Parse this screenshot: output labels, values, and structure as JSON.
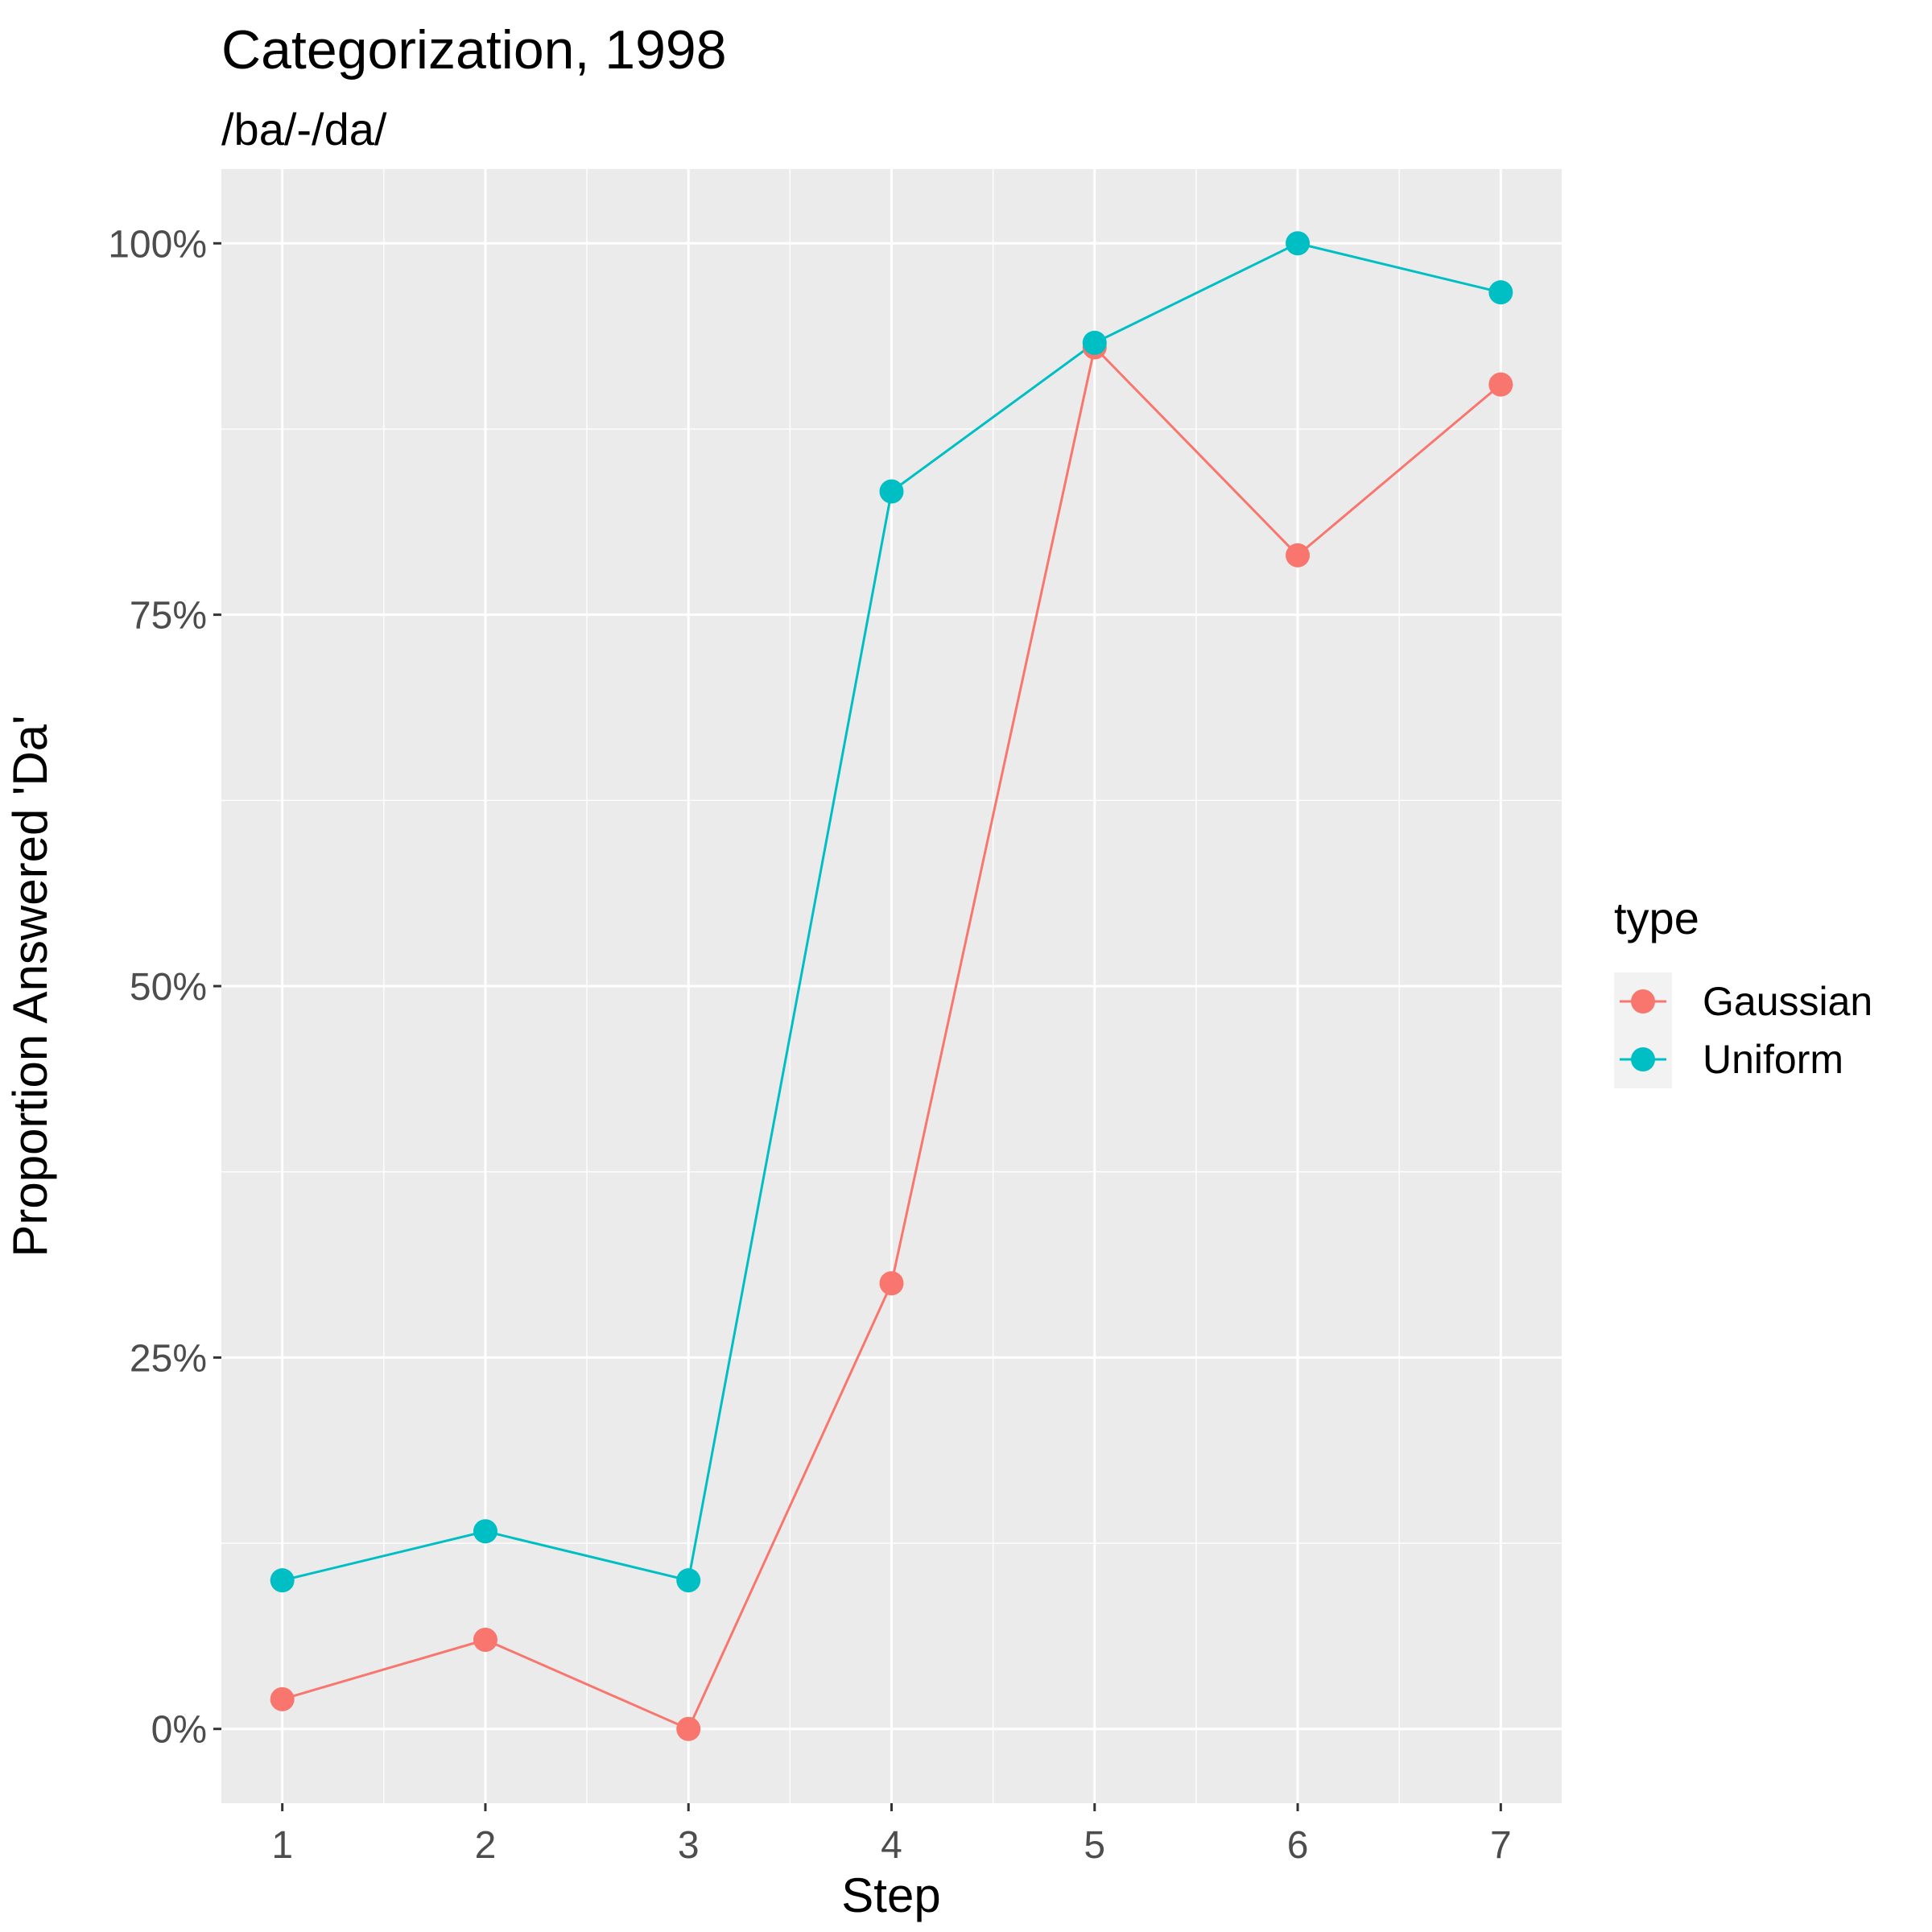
{
  "chart_data": {
    "type": "line",
    "title": "Categorization, 1998",
    "subtitle": "/ba/-/da/",
    "xlabel": "Step",
    "ylabel": "Proportion Answered 'Da'",
    "x": [
      1,
      2,
      3,
      4,
      5,
      6,
      7
    ],
    "x_tick_labels": [
      "1",
      "2",
      "3",
      "4",
      "5",
      "6",
      "7"
    ],
    "xlim": [
      0.7,
      7.3
    ],
    "ylim": [
      -0.05,
      1.05
    ],
    "y_ticks": [
      0,
      0.25,
      0.5,
      0.75,
      1
    ],
    "y_tick_labels": [
      "0%",
      "25%",
      "50%",
      "75%",
      "100%"
    ],
    "grid": true,
    "legend": {
      "title": "type",
      "placement": "right"
    },
    "series": [
      {
        "name": "Gaussian",
        "color": "#F8766D",
        "values": [
          0.02,
          0.06,
          0.0,
          0.3,
          0.93,
          0.79,
          0.905
        ]
      },
      {
        "name": "Uniform",
        "color": "#00BFC4",
        "values": [
          0.1,
          0.133,
          0.1,
          0.833,
          0.933,
          1.0,
          0.967
        ]
      }
    ]
  }
}
